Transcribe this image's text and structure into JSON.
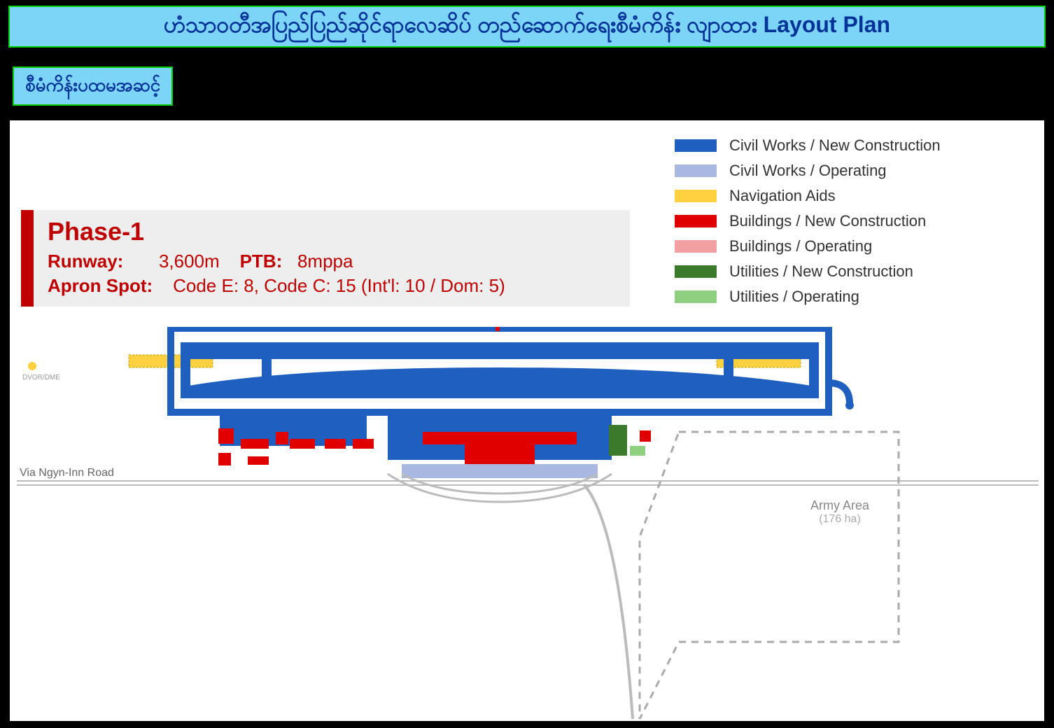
{
  "title": "ဟံသာဝတီအပြည်ပြည်ဆိုင်ရာလေဆိပ် တည်ဆောက်ရေးစီမံကိန်း လျာထား Layout Plan",
  "subtitle": "စီမံကိန်းပထမအဆင့်",
  "colors": {
    "banner_bg": "#7cd4f7",
    "banner_border": "#00d000",
    "banner_text": "#003399",
    "phase_bg": "#eeeeee",
    "phase_accent": "#c00000",
    "civil_new": "#1f5fbf",
    "civil_op": "#a8b8e0",
    "nav_aids": "#ffd040",
    "bldg_new": "#e00000",
    "bldg_op": "#f0a0a0",
    "util_new": "#3a7a2a",
    "util_op": "#8fd080",
    "road": "#bbbbbb",
    "dash": "#aaaaaa"
  },
  "legend": [
    {
      "label": "Civil Works / New Construction",
      "color": "#1f5fbf"
    },
    {
      "label": "Civil Works / Operating",
      "color": "#a8b8e0"
    },
    {
      "label": "Navigation Aids",
      "color": "#ffd040"
    },
    {
      "label": "Buildings / New Construction",
      "color": "#e00000"
    },
    {
      "label": "Buildings / Operating",
      "color": "#f0a0a0"
    },
    {
      "label": "Utilities / New Construction",
      "color": "#3a7a2a"
    },
    {
      "label": "Utilities / Operating",
      "color": "#8fd080"
    }
  ],
  "phase": {
    "title": "Phase-1",
    "runway_label": "Runway:",
    "runway_value": "3,600m",
    "ptb_label": "PTB:",
    "ptb_value": "8mppa",
    "apron_label": "Apron Spot:",
    "apron_value": "Code E: 8, Code C: 15 (Int'l: 10 / Dom: 5)"
  },
  "map": {
    "road_label": "Via Ngyn-Inn Road",
    "dvor_label": "DVOR/DME",
    "army_label": "Army Area",
    "army_sub": "(176 ha)"
  }
}
